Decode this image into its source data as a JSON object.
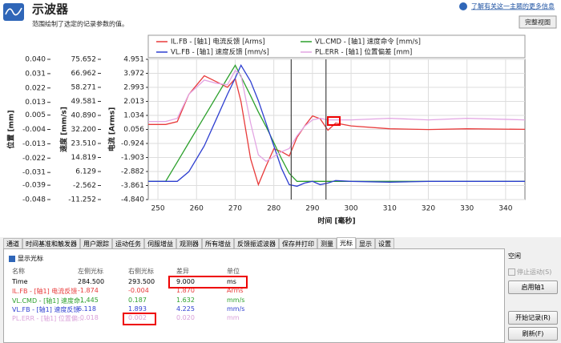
{
  "header": {
    "title": "示波器",
    "subtitle": "范围绘制了选定的记录参数的值。",
    "help_link": "了解有关这一主题的更多信息",
    "full_view_button": "完整视图"
  },
  "chart_data": {
    "type": "line",
    "x_label": "时间 [毫秒]",
    "xlim": [
      247.5,
      345
    ],
    "xticks": [
      250,
      260,
      270,
      280,
      290,
      300,
      310,
      320,
      330,
      340
    ],
    "grid": true,
    "y_axes": [
      {
        "label": "位置 [mm]",
        "ylim": [
          -0.048,
          0.04
        ],
        "yticks": [
          {
            "value": 0.04,
            "label": "0.040"
          },
          {
            "value": 0.031,
            "label": "0.031"
          },
          {
            "value": 0.022,
            "label": "0.022"
          },
          {
            "value": 0.013,
            "label": "0.013"
          },
          {
            "value": 0.005,
            "label": "0.005"
          },
          {
            "value": -0.004,
            "label": "-0.004"
          },
          {
            "value": -0.013,
            "label": "-0.013"
          },
          {
            "value": -0.022,
            "label": "-0.022"
          },
          {
            "value": -0.031,
            "label": "-0.031"
          },
          {
            "value": -0.039,
            "label": "-0.039"
          },
          {
            "value": -0.048,
            "label": "-0.048"
          }
        ]
      },
      {
        "label": "速度 [mm/s]",
        "ylim": [
          -11.252,
          75.652
        ],
        "yticks": [
          {
            "value": 75.652,
            "label": "75.652"
          },
          {
            "value": 66.962,
            "label": "66.962"
          },
          {
            "value": 58.271,
            "label": "58.271"
          },
          {
            "value": 49.581,
            "label": "49.581"
          },
          {
            "value": 40.89,
            "label": "40.890"
          },
          {
            "value": 32.2,
            "label": "32.200"
          },
          {
            "value": 23.51,
            "label": "23.510"
          },
          {
            "value": 14.819,
            "label": "14.819"
          },
          {
            "value": 6.129,
            "label": "6.129"
          },
          {
            "value": -2.562,
            "label": "-2.562"
          },
          {
            "value": -11.252,
            "label": "-11.252"
          }
        ]
      },
      {
        "label": "电流 [Arms]",
        "ylim": [
          -4.84,
          4.951
        ],
        "yticks": [
          {
            "value": 4.951,
            "label": "4.951"
          },
          {
            "value": 3.972,
            "label": "3.972"
          },
          {
            "value": 2.993,
            "label": "2.993"
          },
          {
            "value": 2.013,
            "label": "2.013"
          },
          {
            "value": 1.034,
            "label": "1.034"
          },
          {
            "value": 0.056,
            "label": "0.056"
          },
          {
            "value": -0.924,
            "label": "-0.924"
          },
          {
            "value": -1.903,
            "label": "-1.903"
          },
          {
            "value": -2.882,
            "label": "-2.882"
          },
          {
            "value": -3.861,
            "label": "-3.861"
          },
          {
            "value": -4.84,
            "label": "-4.840"
          }
        ]
      }
    ],
    "x": [
      247.5,
      252,
      255,
      258,
      262,
      265,
      268,
      270,
      271.5,
      274,
      276,
      278,
      280,
      282,
      284,
      286,
      288,
      290,
      292,
      294,
      296,
      300,
      310,
      320,
      330,
      345
    ],
    "series": [
      {
        "name": "IL.FB - [轴1] 电流反馈 [Arms]",
        "color": "#e83a3a",
        "axis": 2,
        "values": [
          0.4,
          0.4,
          0.6,
          2.5,
          3.8,
          3.4,
          3.0,
          3.6,
          2.0,
          -2.0,
          -3.8,
          -2.5,
          -1.3,
          -1.5,
          -1.8,
          -0.5,
          0.3,
          1.0,
          0.8,
          0.0,
          0.5,
          0.3,
          0.1,
          0.05,
          0.1,
          0.06
        ]
      },
      {
        "name": "VL.CMD - [轴1] 速度命令 [mm/s]",
        "color": "#2ca02c",
        "axis": 1,
        "values": [
          0,
          0,
          12,
          24,
          40,
          52,
          64,
          72,
          65,
          53,
          43,
          34,
          24,
          14,
          5,
          0,
          0,
          0,
          0,
          0,
          0,
          0,
          0,
          0,
          0,
          0
        ]
      },
      {
        "name": "VL.FB - [轴1] 速度反馈 [mm/s]",
        "color": "#2e3fd0",
        "axis": 1,
        "values": [
          0,
          0,
          0,
          6,
          22,
          38,
          54,
          64,
          72,
          62,
          50,
          36,
          22,
          8,
          -2,
          -3,
          -1,
          0,
          -2,
          -1,
          0.5,
          0,
          -0.5,
          0,
          0,
          0
        ]
      },
      {
        "name": "PL.ERR - [轴1] 位置偏差 [mm]",
        "color": "#e3a5e3",
        "axis": 0,
        "values": [
          0.001,
          0.001,
          0.003,
          0.018,
          0.027,
          0.025,
          0.024,
          0.033,
          0.03,
          0.0,
          -0.02,
          -0.024,
          -0.021,
          -0.018,
          -0.016,
          -0.008,
          -0.002,
          0.002,
          0.003,
          0.002,
          0.002,
          0.002,
          0.003,
          0.002,
          0.003,
          0.002
        ]
      }
    ],
    "cursors": [
      284.5,
      293.5
    ]
  },
  "tabs": [
    "通道",
    "时间基准和触发器",
    "用户跟踪",
    "运动任务",
    "伺服增益",
    "观测器",
    "所有增益",
    "反馈振滤波器",
    "保存并打印",
    "测量",
    "光标",
    "显示",
    "设置"
  ],
  "cursor_panel": {
    "checkbox": "显示光标",
    "columns": [
      "名称",
      "左侧光标",
      "右侧光标",
      "差异",
      "单位"
    ],
    "rows": [
      [
        "Time",
        "284.500",
        "293.500",
        "9.000",
        "ms"
      ],
      [
        "IL.FB - [轴1] 电流反馈",
        "-1.874",
        "-0.004",
        "1.870",
        "Arms"
      ],
      [
        "VL.CMD - [轴1] 速度命...",
        "-1.445",
        "0.187",
        "1.632",
        "mm/s"
      ],
      [
        "VL.FB - [轴1] 速度反馈",
        "6.118",
        "1.893",
        "4.225",
        "mm/s"
      ],
      [
        "PL.ERR - [轴1] 位置偏...",
        "-0.018",
        "0.002",
        "0.020",
        "mm"
      ]
    ],
    "row_colors": [
      "#000000",
      "#e83a3a",
      "#2ca02c",
      "#2e3fd0",
      "#d9a0d9"
    ]
  },
  "side_panel": {
    "status": "空闲",
    "stop_checkbox": "停止运动(S)",
    "enable_button": "启用轴1",
    "record_button": "开始记录(R)",
    "refresh_button": "刷新(F)"
  }
}
